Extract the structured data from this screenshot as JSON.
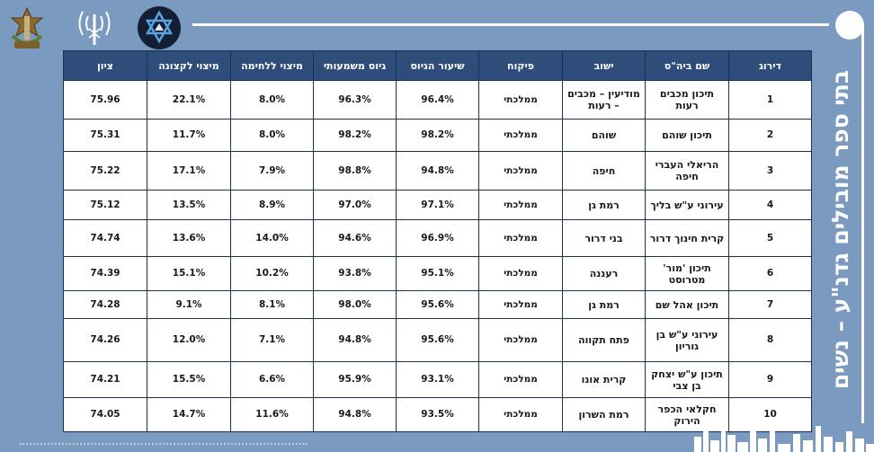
{
  "colors": {
    "background": "#7b9ac0",
    "header_bg": "#2f4d7b",
    "cell_bg": "#ffffff",
    "frame": "#ffffff"
  },
  "logos": [
    "idf-emblem-icon",
    "signal-antenna-icon",
    "star-of-david-shield-icon"
  ],
  "title": "בתי ספר מובילים גדנ\"ע – נשים",
  "table": {
    "headers": [
      "דירוג",
      "שם ביה\"ס",
      "ישוב",
      "פיקוח",
      "שיעור הגיוס",
      "גיוס משמעותי",
      "מיצוי ללחימה",
      "מיצוי לקצונה",
      "ציון"
    ],
    "rows": [
      [
        "1",
        "תיכון מכבים רעות",
        "מודיעין – מכבים – רעות",
        "ממלכתי",
        "96.4%",
        "96.3%",
        "8.0%",
        "22.1%",
        "75.96"
      ],
      [
        "2",
        "תיכון שוהם",
        "שוהם",
        "ממלכתי",
        "98.2%",
        "98.2%",
        "8.0%",
        "11.7%",
        "75.31"
      ],
      [
        "3",
        "הריאלי העברי חיפה",
        "חיפה",
        "ממלכתי",
        "94.8%",
        "98.8%",
        "7.9%",
        "17.1%",
        "75.22"
      ],
      [
        "4",
        "עירוני ע\"ש בליך",
        "רמת גן",
        "ממלכתי",
        "97.1%",
        "97.0%",
        "8.9%",
        "13.5%",
        "75.12"
      ],
      [
        "5",
        "קרית חינוך דרור",
        "בני דרור",
        "ממלכתי",
        "96.9%",
        "94.6%",
        "14.0%",
        "13.6%",
        "74.74"
      ],
      [
        "6",
        "תיכון 'מור' מטרוסט",
        "רעננה",
        "ממלכתי",
        "95.1%",
        "93.8%",
        "10.2%",
        "15.1%",
        "74.39"
      ],
      [
        "7",
        "תיכון אהל שם",
        "רמת גן",
        "ממלכתי",
        "95.6%",
        "98.0%",
        "8.1%",
        "9.1%",
        "74.28"
      ],
      [
        "8",
        "עירוני ע\"ש בן גוריון",
        "פתח תקווה",
        "ממלכתי",
        "95.6%",
        "94.8%",
        "7.1%",
        "12.0%",
        "74.26"
      ],
      [
        "9",
        "תיכון ע\"ש יצחק בן צבי",
        "קרית אונו",
        "ממלכתי",
        "93.1%",
        "95.9%",
        "6.6%",
        "15.5%",
        "74.21"
      ],
      [
        "10",
        "חקלאי הכפר הירוק",
        "רמת השרון",
        "ממלכתי",
        "93.5%",
        "94.8%",
        "11.6%",
        "14.7%",
        "74.05"
      ]
    ]
  }
}
